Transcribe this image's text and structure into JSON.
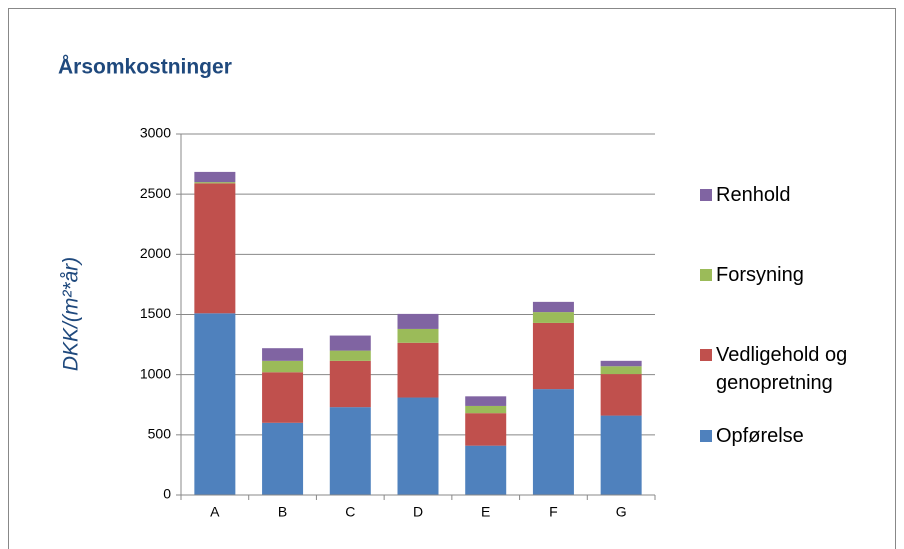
{
  "chart_data": {
    "type": "stacked_bar",
    "title": "Årsomkostninger",
    "y_label": "DKK/(m²*år)",
    "categories": [
      "A",
      "B",
      "C",
      "D",
      "E",
      "F",
      "G"
    ],
    "series": [
      {
        "name": "Opførelse",
        "color": "#4f81bd",
        "values": [
          1510,
          600,
          730,
          810,
          410,
          880,
          660
        ]
      },
      {
        "name": "Vedligehold og genopretning",
        "color": "#c0504d",
        "values": [
          1080,
          420,
          385,
          455,
          270,
          550,
          345
        ]
      },
      {
        "name": "Forsyning",
        "color": "#9bbb59",
        "values": [
          10,
          95,
          85,
          115,
          60,
          90,
          65
        ]
      },
      {
        "name": "Renhold",
        "color": "#8064a2",
        "values": [
          85,
          105,
          125,
          125,
          80,
          85,
          45
        ]
      }
    ],
    "ylim": [
      0,
      3000
    ],
    "yticks": [
      0,
      500,
      1000,
      1500,
      2000,
      2500,
      3000
    ],
    "grid": true,
    "legend": "right"
  }
}
